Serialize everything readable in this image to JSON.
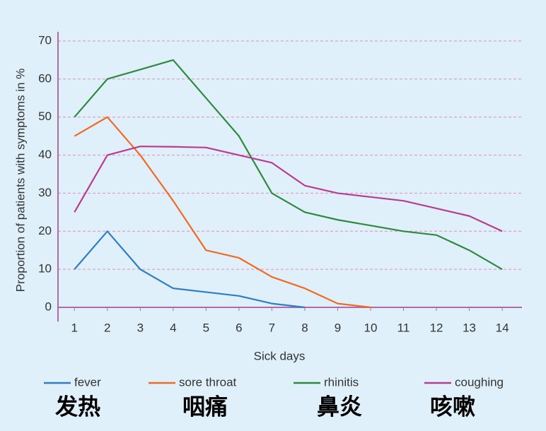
{
  "chart_data": {
    "type": "line",
    "x_label": "Sick days",
    "y_label": "Proportion of patients with symptoms in %",
    "x": [
      1,
      2,
      3,
      4,
      5,
      6,
      7,
      8,
      9,
      10,
      11,
      12,
      13,
      14
    ],
    "series": [
      {
        "name": "fever",
        "color": "#2f7ec4",
        "values": [
          10,
          20,
          10,
          5,
          4,
          3,
          1,
          0,
          null,
          null,
          null,
          null,
          null,
          null
        ]
      },
      {
        "name": "sore throat",
        "color": "#f06a22",
        "values": [
          45,
          50,
          40,
          28,
          15,
          13,
          8,
          5,
          1,
          0,
          null,
          null,
          null,
          null
        ]
      },
      {
        "name": "rhinitis",
        "color": "#2e8b3e",
        "values": [
          50,
          60,
          62.5,
          65,
          55,
          45,
          30,
          25,
          23,
          21.5,
          20,
          19,
          15,
          10
        ]
      },
      {
        "name": "coughing",
        "color": "#b83c91",
        "values": [
          25,
          40,
          42.3,
          42.2,
          42,
          40,
          38,
          32,
          30,
          29,
          28,
          26,
          24,
          20
        ]
      }
    ],
    "annotations": [
      "发热",
      "咽痛",
      "鼻炎",
      "咳嗽"
    ],
    "xlim": [
      0.5,
      14.6
    ],
    "ylim": [
      0,
      70
    ],
    "xticks": [
      1,
      2,
      3,
      4,
      5,
      6,
      7,
      8,
      9,
      10,
      11,
      12,
      13,
      14
    ],
    "yticks": [
      0,
      10,
      20,
      30,
      40,
      50,
      60,
      70
    ],
    "grid": true,
    "legend": "bottom"
  }
}
